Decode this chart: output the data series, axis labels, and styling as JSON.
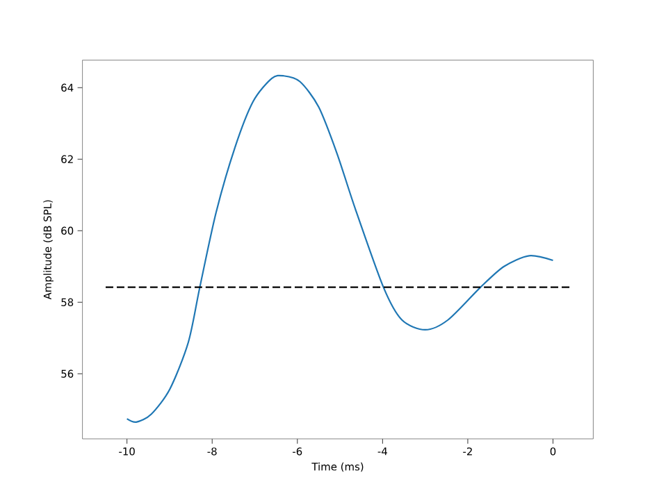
{
  "chart_data": {
    "type": "line",
    "xlabel": "Time (ms)",
    "ylabel": "Amplitude (dB SPL)",
    "xlim": [
      -11.045,
      0.945
    ],
    "ylim": [
      54.18,
      64.77
    ],
    "xticks": [
      -10,
      -8,
      -6,
      -4,
      -2,
      0
    ],
    "yticks": [
      56,
      58,
      60,
      62,
      64
    ],
    "series": [
      {
        "color": "#1f77b4",
        "line_style": "solid",
        "x": [
          -10.0,
          -9.78,
          -9.43,
          -8.99,
          -8.56,
          -8.29,
          -7.91,
          -7.47,
          -7.04,
          -6.6,
          -6.32,
          -5.94,
          -5.5,
          -5.07,
          -4.64,
          -3.98,
          -3.55,
          -3.0,
          -2.46,
          -1.7,
          -1.15,
          -0.56,
          0.0
        ],
        "values": [
          54.74,
          54.65,
          54.87,
          55.58,
          56.88,
          58.42,
          60.5,
          62.31,
          63.61,
          64.26,
          64.33,
          64.17,
          63.46,
          62.16,
          60.61,
          58.42,
          57.51,
          57.23,
          57.51,
          58.42,
          59.0,
          59.3,
          59.17
        ]
      },
      {
        "color": "#000000",
        "line_style": "dashed",
        "x": [
          -10.5,
          0.4
        ],
        "values": [
          58.42,
          58.42
        ]
      }
    ]
  }
}
